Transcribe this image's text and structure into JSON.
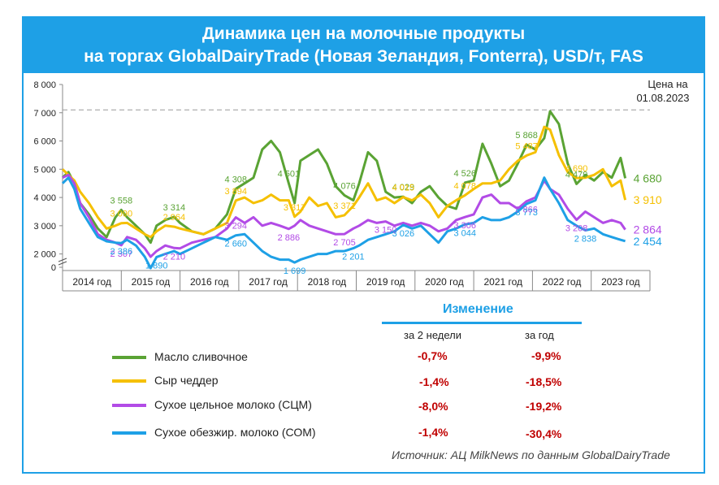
{
  "header": {
    "line1": "Динамика цен на молочные продукты",
    "line2": "на торгах GlobalDairyTrade (Новая Зеландия, Fonterra), USD/т, FAS"
  },
  "chart_data": {
    "type": "line",
    "title": "Динамика цен на молочные продукты на торгах GlobalDairyTrade (Новая Зеландия, Fonterra), USD/т, FAS",
    "ylabel": "",
    "ylim": [
      0,
      8000
    ],
    "yticks": [
      "0",
      "2 000",
      "3 000",
      "4 000",
      "5 000",
      "6 000",
      "7 000",
      "8 000"
    ],
    "x_categories": [
      "2014 год",
      "2015 год",
      "2016 год",
      "2017 год",
      "2018 год",
      "2019 год",
      "2020 год",
      "2021 год",
      "2022 год",
      "2023 год"
    ],
    "note": "Цена на 01.08.2023",
    "reference_line": 7100,
    "grid": false,
    "colors": {
      "butter": "#5aa334",
      "cheddar": "#f5c000",
      "wmp": "#b24be6",
      "smp": "#1ea0e6"
    },
    "series": [
      {
        "name": "Масло сливочное",
        "key": "butter",
        "x": [
          2014.0,
          2014.1,
          2014.2,
          2014.3,
          2014.45,
          2014.6,
          2014.75,
          2014.9,
          2015.0,
          2015.1,
          2015.25,
          2015.4,
          2015.5,
          2015.6,
          2015.75,
          2015.9,
          2016.0,
          2016.2,
          2016.4,
          2016.6,
          2016.8,
          2016.95,
          2017.1,
          2017.25,
          2017.4,
          2017.55,
          2017.7,
          2017.85,
          2017.95,
          2018.05,
          2018.2,
          2018.35,
          2018.5,
          2018.65,
          2018.8,
          2018.95,
          2019.05,
          2019.2,
          2019.35,
          2019.5,
          2019.65,
          2019.8,
          2019.95,
          2020.1,
          2020.25,
          2020.4,
          2020.55,
          2020.7,
          2020.85,
          2021.0,
          2021.15,
          2021.3,
          2021.45,
          2021.6,
          2021.75,
          2021.9,
          2022.05,
          2022.2,
          2022.3,
          2022.45,
          2022.6,
          2022.75,
          2022.9,
          2023.05,
          2023.2,
          2023.35,
          2023.5,
          2023.58
        ],
        "values": [
          4700,
          4900,
          4500,
          3800,
          3400,
          2900,
          2600,
          3300,
          3558,
          3300,
          3000,
          2700,
          2400,
          3000,
          3200,
          3314,
          3100,
          2800,
          2700,
          2900,
          3400,
          4308,
          4500,
          4700,
          5700,
          6000,
          5600,
          4501,
          3800,
          5300,
          5500,
          5700,
          5200,
          4400,
          4076,
          3900,
          4500,
          5600,
          5300,
          4200,
          4000,
          4029,
          3800,
          4200,
          4400,
          4000,
          3700,
          3600,
          4526,
          4600,
          5900,
          5200,
          4400,
          4600,
          5200,
          5868,
          5700,
          6100,
          7050,
          6600,
          5200,
          4479,
          4800,
          4600,
          4900,
          4700,
          5400,
          4680
        ]
      },
      {
        "name": "Сыр чеддер",
        "key": "cheddar",
        "x": [
          2014.0,
          2014.1,
          2014.2,
          2014.3,
          2014.45,
          2014.6,
          2014.75,
          2014.9,
          2015.0,
          2015.1,
          2015.25,
          2015.4,
          2015.5,
          2015.6,
          2015.75,
          2015.9,
          2016.0,
          2016.2,
          2016.4,
          2016.6,
          2016.8,
          2016.95,
          2017.1,
          2017.25,
          2017.4,
          2017.55,
          2017.7,
          2017.85,
          2017.95,
          2018.05,
          2018.2,
          2018.35,
          2018.5,
          2018.65,
          2018.8,
          2018.95,
          2019.05,
          2019.2,
          2019.35,
          2019.5,
          2019.65,
          2019.8,
          2019.95,
          2020.1,
          2020.25,
          2020.4,
          2020.55,
          2020.7,
          2020.85,
          2021.0,
          2021.15,
          2021.3,
          2021.45,
          2021.6,
          2021.75,
          2021.9,
          2022.05,
          2022.2,
          2022.3,
          2022.45,
          2022.6,
          2022.75,
          2022.9,
          2023.05,
          2023.2,
          2023.35,
          2023.5,
          2023.58
        ],
        "values": [
          5000,
          4800,
          4600,
          4200,
          3800,
          3300,
          2900,
          3000,
          3090,
          3100,
          2900,
          2700,
          2600,
          2800,
          3000,
          2964,
          2900,
          2800,
          2700,
          2900,
          3100,
          3894,
          4000,
          3800,
          3900,
          4100,
          3900,
          3900,
          3317,
          3500,
          4000,
          3700,
          3800,
          3300,
          3371,
          3700,
          4000,
          4500,
          3900,
          4000,
          3800,
          4015,
          3900,
          4100,
          3800,
          3300,
          3700,
          3900,
          4078,
          4300,
          4500,
          4500,
          4600,
          5000,
          5300,
          5487,
          5600,
          6500,
          6400,
          5500,
          4900,
          4690,
          4700,
          4800,
          5000,
          4400,
          4600,
          3910
        ]
      },
      {
        "name": "Сухое цельное молоко (СЦМ)",
        "key": "wmp",
        "x": [
          2014.0,
          2014.1,
          2014.2,
          2014.3,
          2014.45,
          2014.6,
          2014.75,
          2014.9,
          2015.0,
          2015.1,
          2015.25,
          2015.4,
          2015.5,
          2015.6,
          2015.75,
          2015.9,
          2016.0,
          2016.2,
          2016.4,
          2016.6,
          2016.8,
          2016.95,
          2017.1,
          2017.25,
          2017.4,
          2017.55,
          2017.7,
          2017.85,
          2017.95,
          2018.05,
          2018.2,
          2018.35,
          2018.5,
          2018.65,
          2018.8,
          2018.95,
          2019.05,
          2019.2,
          2019.35,
          2019.5,
          2019.65,
          2019.8,
          2019.95,
          2020.1,
          2020.25,
          2020.4,
          2020.55,
          2020.7,
          2020.85,
          2021.0,
          2021.15,
          2021.3,
          2021.45,
          2021.6,
          2021.75,
          2021.9,
          2022.05,
          2022.2,
          2022.3,
          2022.45,
          2022.6,
          2022.75,
          2022.9,
          2023.05,
          2023.2,
          2023.35,
          2023.5,
          2023.58
        ],
        "values": [
          4700,
          4800,
          4500,
          3800,
          3300,
          2700,
          2500,
          2400,
          2307,
          2600,
          2500,
          2200,
          1900,
          2100,
          2300,
          2210,
          2200,
          2400,
          2500,
          2600,
          2900,
          3294,
          3100,
          3300,
          3000,
          3100,
          3000,
          2886,
          3000,
          3200,
          3000,
          2900,
          2800,
          2700,
          2705,
          2900,
          3000,
          3200,
          3100,
          3150,
          3000,
          3100,
          3000,
          3100,
          3000,
          2800,
          2900,
          3200,
          3306,
          3400,
          4000,
          4100,
          3800,
          3800,
          3600,
          3866,
          4000,
          4600,
          4300,
          4100,
          3600,
          3208,
          3500,
          3300,
          3100,
          3200,
          3100,
          2864
        ]
      },
      {
        "name": "Сухое обезжир. молоко (СОМ)",
        "key": "smp",
        "x": [
          2014.0,
          2014.1,
          2014.2,
          2014.3,
          2014.45,
          2014.6,
          2014.75,
          2014.9,
          2015.0,
          2015.1,
          2015.25,
          2015.4,
          2015.5,
          2015.6,
          2015.75,
          2015.9,
          2016.0,
          2016.2,
          2016.4,
          2016.6,
          2016.8,
          2016.95,
          2017.1,
          2017.25,
          2017.4,
          2017.55,
          2017.7,
          2017.85,
          2017.95,
          2018.05,
          2018.2,
          2018.35,
          2018.5,
          2018.65,
          2018.8,
          2018.95,
          2019.05,
          2019.2,
          2019.35,
          2019.5,
          2019.65,
          2019.8,
          2019.95,
          2020.1,
          2020.25,
          2020.4,
          2020.55,
          2020.7,
          2020.85,
          2021.0,
          2021.15,
          2021.3,
          2021.45,
          2021.6,
          2021.75,
          2021.9,
          2022.05,
          2022.2,
          2022.3,
          2022.45,
          2022.6,
          2022.75,
          2022.9,
          2023.05,
          2023.2,
          2023.35,
          2023.5,
          2023.58
        ],
        "values": [
          4500,
          4700,
          4300,
          3600,
          3100,
          2600,
          2450,
          2400,
          2386,
          2500,
          2300,
          1900,
          1500,
          1890,
          2000,
          2100,
          2000,
          2200,
          2400,
          2600,
          2500,
          2660,
          2700,
          2400,
          2100,
          1900,
          1800,
          1800,
          1699,
          1800,
          1900,
          2000,
          2000,
          2100,
          2100,
          2201,
          2300,
          2500,
          2600,
          2700,
          2800,
          3026,
          2900,
          3000,
          2700,
          2400,
          2800,
          2900,
          3044,
          3100,
          3300,
          3200,
          3200,
          3300,
          3500,
          3773,
          3900,
          4700,
          4300,
          3800,
          3200,
          3000,
          2838,
          2900,
          2700,
          2600,
          2500,
          2454
        ]
      }
    ],
    "data_labels": [
      {
        "key": "butter",
        "text": "3 558"
      },
      {
        "key": "butter",
        "text": "3 314"
      },
      {
        "key": "butter",
        "text": "4 308"
      },
      {
        "key": "butter",
        "text": "4 501"
      },
      {
        "key": "butter",
        "text": "4 076"
      },
      {
        "key": "butter",
        "text": "4 029"
      },
      {
        "key": "butter",
        "text": "4 526"
      },
      {
        "key": "butter",
        "text": "5 868"
      },
      {
        "key": "butter",
        "text": "4 479"
      },
      {
        "key": "butter",
        "text": "4 680"
      },
      {
        "key": "cheddar",
        "text": "3 090"
      },
      {
        "key": "cheddar",
        "text": "2 964"
      },
      {
        "key": "cheddar",
        "text": "3 894"
      },
      {
        "key": "cheddar",
        "text": "3 317"
      },
      {
        "key": "cheddar",
        "text": "3 371"
      },
      {
        "key": "cheddar",
        "text": "4 015"
      },
      {
        "key": "cheddar",
        "text": "4 078"
      },
      {
        "key": "cheddar",
        "text": "5 487"
      },
      {
        "key": "cheddar",
        "text": "4 690"
      },
      {
        "key": "cheddar",
        "text": "3 910"
      },
      {
        "key": "wmp",
        "text": "2 307"
      },
      {
        "key": "wmp",
        "text": "2 210"
      },
      {
        "key": "wmp",
        "text": "3 294"
      },
      {
        "key": "wmp",
        "text": "2 886"
      },
      {
        "key": "wmp",
        "text": "2 705"
      },
      {
        "key": "wmp",
        "text": "3 150"
      },
      {
        "key": "wmp",
        "text": "3 306"
      },
      {
        "key": "wmp",
        "text": "3 866"
      },
      {
        "key": "wmp",
        "text": "3 208"
      },
      {
        "key": "wmp",
        "text": "2 864"
      },
      {
        "key": "smp",
        "text": "2 386"
      },
      {
        "key": "smp",
        "text": "1 890"
      },
      {
        "key": "smp",
        "text": "2 660"
      },
      {
        "key": "smp",
        "text": "1 699"
      },
      {
        "key": "smp",
        "text": "2 201"
      },
      {
        "key": "smp",
        "text": "3 026"
      },
      {
        "key": "smp",
        "text": "3 044"
      },
      {
        "key": "smp",
        "text": "3 773"
      },
      {
        "key": "smp",
        "text": "2 838"
      },
      {
        "key": "smp",
        "text": "2 454"
      }
    ]
  },
  "legend": {
    "title": "Изменение",
    "col_2weeks": "за 2 недели",
    "col_year": "за год",
    "rows": [
      {
        "key": "butter",
        "label": "Масло сливочное",
        "two_weeks": "-0,7%",
        "year": "-9,9%"
      },
      {
        "key": "cheddar",
        "label": "Сыр чеддер",
        "two_weeks": "-1,4%",
        "year": "-18,5%"
      },
      {
        "key": "wmp",
        "label": "Сухое цельное молоко (СЦМ)",
        "two_weeks": "-8,0%",
        "year": "-19,2%"
      },
      {
        "key": "smp",
        "label": "Сухое обезжир. молоко (СОМ)",
        "two_weeks": "-1,4%",
        "year": "-30,4%"
      }
    ]
  },
  "source": "Источник: АЦ MilkNews по данным GlobalDairyTrade"
}
